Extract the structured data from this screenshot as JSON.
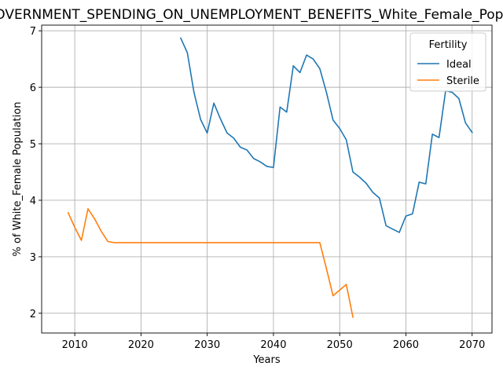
{
  "chart_data": {
    "type": "line",
    "title": "GOVERNMENT_SPENDING_ON_UNEMPLOYMENT_BENEFITS_White_Female_Population",
    "xlabel": "Years",
    "ylabel": "% of White_Female Population",
    "xlim": [
      2005,
      2073
    ],
    "ylim": [
      1.65,
      7.1
    ],
    "xticks": [
      2010,
      2020,
      2030,
      2040,
      2050,
      2060,
      2070
    ],
    "yticks": [
      2,
      3,
      4,
      5,
      6,
      7
    ],
    "grid": true,
    "legend": {
      "title": "Fertility",
      "placement": "top-right"
    },
    "series": [
      {
        "name": "Ideal",
        "color": "#1f77b4",
        "x": [
          2026,
          2027,
          2028,
          2029,
          2030,
          2031,
          2032,
          2033,
          2034,
          2035,
          2036,
          2037,
          2038,
          2039,
          2040,
          2041,
          2042,
          2043,
          2044,
          2045,
          2046,
          2047,
          2048,
          2049,
          2050,
          2051,
          2052,
          2053,
          2054,
          2055,
          2056,
          2057,
          2058,
          2059,
          2060,
          2061,
          2062,
          2063,
          2064,
          2065,
          2066,
          2067,
          2068,
          2069,
          2070
        ],
        "y": [
          6.87,
          6.61,
          5.91,
          5.43,
          5.19,
          5.72,
          5.44,
          5.19,
          5.1,
          4.94,
          4.89,
          4.74,
          4.68,
          4.6,
          4.58,
          5.65,
          5.56,
          6.38,
          6.26,
          6.57,
          6.5,
          6.33,
          5.91,
          5.42,
          5.27,
          5.07,
          4.5,
          4.41,
          4.3,
          4.14,
          4.04,
          3.55,
          3.49,
          3.43,
          3.72,
          3.76,
          4.32,
          4.29,
          5.17,
          5.11,
          5.94,
          5.91,
          5.8,
          5.37,
          5.2
        ]
      },
      {
        "name": "Sterile",
        "color": "#ff7f0e",
        "x": [
          2009,
          2010,
          2011,
          2012,
          2013,
          2014,
          2015,
          2016,
          2017,
          2018,
          2019,
          2020,
          2021,
          2022,
          2023,
          2024,
          2025,
          2026,
          2027,
          2028,
          2029,
          2030,
          2031,
          2032,
          2033,
          2034,
          2035,
          2036,
          2037,
          2038,
          2039,
          2040,
          2041,
          2042,
          2043,
          2044,
          2045,
          2046,
          2047,
          2048,
          2049,
          2050,
          2051,
          2052
        ],
        "y": [
          3.78,
          3.52,
          3.29,
          3.85,
          3.67,
          3.45,
          3.27,
          3.25,
          3.25,
          3.25,
          3.25,
          3.25,
          3.25,
          3.25,
          3.25,
          3.25,
          3.25,
          3.25,
          3.25,
          3.25,
          3.25,
          3.25,
          3.25,
          3.25,
          3.25,
          3.25,
          3.25,
          3.25,
          3.25,
          3.25,
          3.25,
          3.25,
          3.25,
          3.25,
          3.25,
          3.25,
          3.25,
          3.25,
          3.25,
          2.79,
          2.31,
          2.41,
          2.51,
          1.93
        ]
      }
    ]
  }
}
